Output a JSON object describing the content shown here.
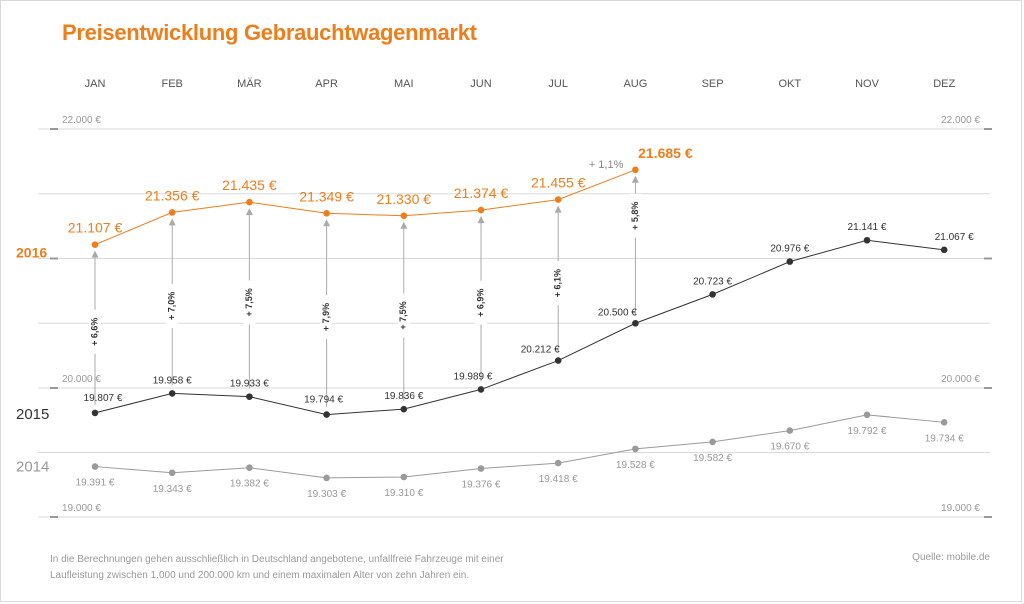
{
  "title": "Preisentwicklung Gebrauchtwagenmarkt",
  "footnote": "In die Berechnungen gehen ausschließlich in Deutschland angebotene, unfallfreie Fahrzeuge mit einer Laufleistung zwischen 1.000 und 200.000 km und einem maximalen Alter von zehn Jahren ein.",
  "source": "Quelle: mobile.de",
  "colors": {
    "s2016": "#ef7d1a",
    "s2015": "#333333",
    "s2014": "#9a9a9a",
    "grid": "#d9d9d9",
    "text": "#555555"
  },
  "chart_data": {
    "type": "line",
    "categories": [
      "JAN",
      "FEB",
      "MÄR",
      "APR",
      "MAI",
      "JUN",
      "JUL",
      "AUG",
      "SEP",
      "OKT",
      "NOV",
      "DEZ"
    ],
    "ylim": [
      19000,
      22000
    ],
    "y_tick_labels": {
      "top": "22.000 €",
      "mid": "20.000 €",
      "bottom": "19.000 €"
    },
    "series": [
      {
        "name": "2016",
        "values": [
          21107,
          21356,
          21435,
          21349,
          21330,
          21374,
          21455,
          21685,
          null,
          null,
          null,
          null
        ],
        "labels": [
          "21.107 €",
          "21.356 €",
          "21.435 €",
          "21.349 €",
          "21.330 €",
          "21.374 €",
          "21.455 €",
          "21.685 €",
          "",
          "",
          "",
          ""
        ]
      },
      {
        "name": "2015",
        "values": [
          19807,
          19958,
          19933,
          19794,
          19836,
          19989,
          20212,
          20500,
          20723,
          20976,
          21141,
          21067
        ],
        "labels": [
          "19.807 €",
          "19.958 €",
          "19.933 €",
          "19.794 €",
          "19.836 €",
          "19.989 €",
          "20.212 €",
          "20.500 €",
          "20.723 €",
          "20.976 €",
          "21.141 €",
          "21.067 €"
        ]
      },
      {
        "name": "2014",
        "values": [
          19391,
          19343,
          19382,
          19303,
          19310,
          19376,
          19418,
          19528,
          19582,
          19670,
          19792,
          19734
        ],
        "labels": [
          "19.391 €",
          "19.343 €",
          "19.382 €",
          "19.303 €",
          "19.310 €",
          "19.376 €",
          "19.418 €",
          "19.528 €",
          "19.582 €",
          "19.670 €",
          "19.792 €",
          "19.734 €"
        ]
      }
    ],
    "yoy_changes": [
      "+ 6,6%",
      "+ 7,0%",
      "+ 7,5%",
      "+ 7,9%",
      "+ 7,5%",
      "+ 6,9%",
      "+ 6,1%",
      "+ 5,8%"
    ],
    "mom_change": {
      "from": "JUL",
      "to": "AUG",
      "label": "+ 1,1%"
    },
    "grid": true,
    "legend": "left"
  }
}
